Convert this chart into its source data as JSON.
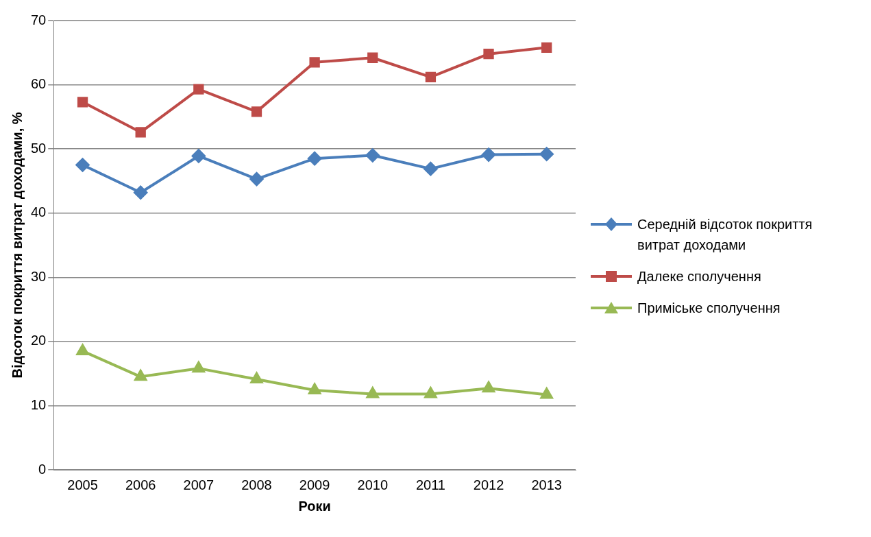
{
  "chart_data": {
    "type": "line",
    "xlabel": "Роки",
    "ylabel": "Відсоток покриття витрат доходами, %",
    "categories": [
      "2005",
      "2006",
      "2007",
      "2008",
      "2009",
      "2010",
      "2011",
      "2012",
      "2013"
    ],
    "series": [
      {
        "name": "Середній відсоток покриття витрат доходами",
        "color": "#4a7ebb",
        "marker": "diamond",
        "values": [
          47.5,
          43.2,
          48.9,
          45.3,
          48.5,
          49.0,
          46.9,
          49.1,
          49.2
        ]
      },
      {
        "name": "Далеке сполучення",
        "color": "#be4b48",
        "marker": "square",
        "values": [
          57.3,
          52.6,
          59.3,
          55.8,
          63.5,
          64.2,
          61.2,
          64.8,
          65.8
        ]
      },
      {
        "name": "Приміське сполучення",
        "color": "#98b954",
        "marker": "triangle",
        "values": [
          18.5,
          14.5,
          15.8,
          14.1,
          12.4,
          11.8,
          11.8,
          12.7,
          11.7
        ]
      }
    ],
    "ylim": [
      0,
      70
    ],
    "yticks": [
      0,
      10,
      20,
      30,
      40,
      50,
      60,
      70
    ],
    "grid": "y",
    "legend": "right"
  }
}
